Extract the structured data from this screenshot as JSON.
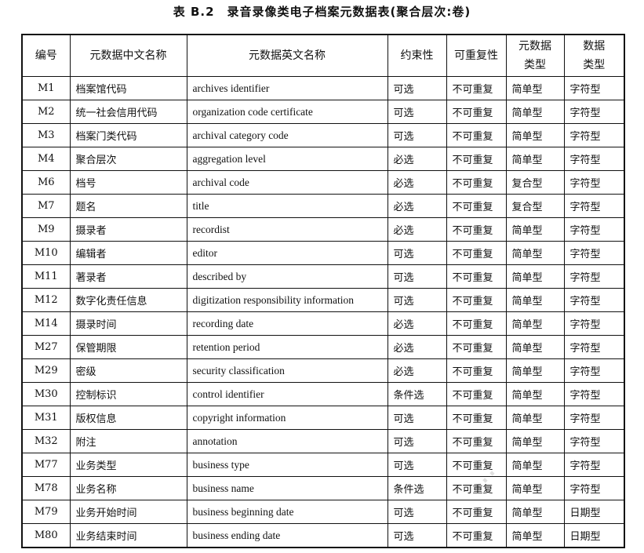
{
  "title": "表 B.2　录音录像类电子档案元数据表(聚合层次:卷)",
  "headers": [
    "编号",
    "元数据中文名称",
    "元数据英文名称",
    "约束性",
    "可重复性",
    "元数据类型",
    "数据类型"
  ],
  "rows": [
    [
      "M1",
      "档案馆代码",
      "archives identifier",
      "可选",
      "不可重复",
      "简单型",
      "字符型"
    ],
    [
      "M2",
      "统一社会信用代码",
      "organization code certificate",
      "可选",
      "不可重复",
      "简单型",
      "字符型"
    ],
    [
      "M3",
      "档案门类代码",
      "archival category code",
      "可选",
      "不可重复",
      "简单型",
      "字符型"
    ],
    [
      "M4",
      "聚合层次",
      "aggregation level",
      "必选",
      "不可重复",
      "简单型",
      "字符型"
    ],
    [
      "M6",
      "档号",
      "archival code",
      "必选",
      "不可重复",
      "复合型",
      "字符型"
    ],
    [
      "M7",
      "题名",
      "title",
      "必选",
      "不可重复",
      "复合型",
      "字符型"
    ],
    [
      "M9",
      "摄录者",
      "recordist",
      "必选",
      "不可重复",
      "简单型",
      "字符型"
    ],
    [
      "M10",
      "编辑者",
      "editor",
      "可选",
      "不可重复",
      "简单型",
      "字符型"
    ],
    [
      "M11",
      "著录者",
      "described by",
      "可选",
      "不可重复",
      "简单型",
      "字符型"
    ],
    [
      "M12",
      "数字化责任信息",
      "digitization responsibility information",
      "可选",
      "不可重复",
      "简单型",
      "字符型"
    ],
    [
      "M14",
      "摄录时间",
      "recording date",
      "必选",
      "不可重复",
      "简单型",
      "字符型"
    ],
    [
      "M27",
      "保管期限",
      "retention period",
      "必选",
      "不可重复",
      "简单型",
      "字符型"
    ],
    [
      "M29",
      "密级",
      "security classification",
      "必选",
      "不可重复",
      "简单型",
      "字符型"
    ],
    [
      "M30",
      "控制标识",
      "control identifier",
      "条件选",
      "不可重复",
      "简单型",
      "字符型"
    ],
    [
      "M31",
      "版权信息",
      "copyright information",
      "可选",
      "不可重复",
      "简单型",
      "字符型"
    ],
    [
      "M32",
      "附注",
      "annotation",
      "可选",
      "不可重复",
      "简单型",
      "字符型"
    ],
    [
      "M77",
      "业务类型",
      "business type",
      "可选",
      "不可重复",
      "简单型",
      "字符型"
    ],
    [
      "M78",
      "业务名称",
      "business name",
      "条件选",
      "不可重复",
      "简单型",
      "字符型"
    ],
    [
      "M79",
      "业务开始时间",
      "business beginning date",
      "可选",
      "不可重复",
      "简单型",
      "日期型"
    ],
    [
      "M80",
      "业务结束时间",
      "business ending date",
      "可选",
      "不可重复",
      "简单型",
      "日期型"
    ]
  ]
}
